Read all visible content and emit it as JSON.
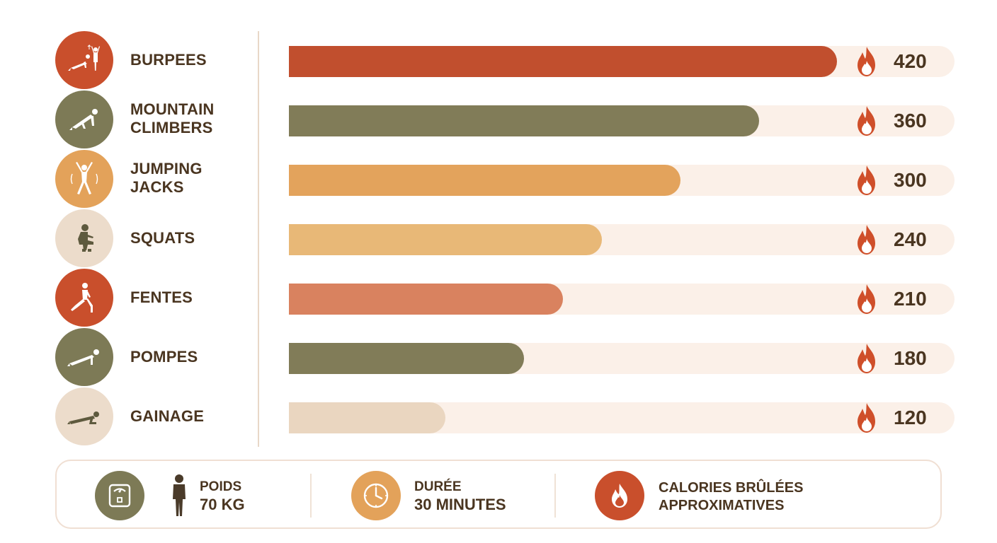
{
  "chart_data": {
    "type": "bar",
    "orientation": "horizontal",
    "categories": [
      "BURPEES",
      "MOUNTAIN CLIMBERS",
      "JUMPING JACKS",
      "SQUATS",
      "FENTES",
      "POMPES",
      "GAINAGE"
    ],
    "values": [
      420,
      360,
      300,
      240,
      210,
      180,
      120
    ],
    "value_labels": [
      "420",
      "360",
      "300",
      "240",
      "210",
      "180",
      "120"
    ],
    "xlim": [
      0,
      510
    ],
    "grid": false,
    "legend": "none",
    "title": "",
    "xlabel": "",
    "ylabel": ""
  },
  "exercises": [
    {
      "label": "BURPEES",
      "icon": "burpee-figure-icon",
      "circle_color": "#c94f2c",
      "bar_color": "#c14f2e"
    },
    {
      "label": "MOUNTAIN\nCLIMBERS",
      "icon": "mountain-climber-figure-icon",
      "circle_color": "#7d7a56",
      "bar_color": "#817c58"
    },
    {
      "label": "JUMPING\nJACKS",
      "icon": "jumping-jack-figure-icon",
      "circle_color": "#e3a25a",
      "bar_color": "#e3a35c"
    },
    {
      "label": "SQUATS",
      "icon": "squat-figure-icon",
      "circle_color": "#ecdccb",
      "bar_color": "#e8b877"
    },
    {
      "label": "FENTES",
      "icon": "lunge-figure-icon",
      "circle_color": "#c94f2c",
      "bar_color": "#d9825f"
    },
    {
      "label": "POMPES",
      "icon": "pushup-figure-icon",
      "circle_color": "#7d7a56",
      "bar_color": "#817c58"
    },
    {
      "label": "GAINAGE",
      "icon": "plank-figure-icon",
      "circle_color": "#ecdccb",
      "bar_color": "#ead6c0"
    }
  ],
  "colors": {
    "text": "#4a3520",
    "track": "#fbf0e8",
    "flame": "#cf4f2a",
    "divider": "#e8d8c8"
  },
  "footer": {
    "weight_label": "POIDS",
    "weight_value": "70 KG",
    "duration_label": "DURÉE",
    "duration_value": "30 MINUTES",
    "calories_line1": "CALORIES BRÛLÉES",
    "calories_line2": "APPROXIMATIVES",
    "icons": [
      "scale-icon",
      "person-icon",
      "clock-icon",
      "flame-icon"
    ]
  }
}
